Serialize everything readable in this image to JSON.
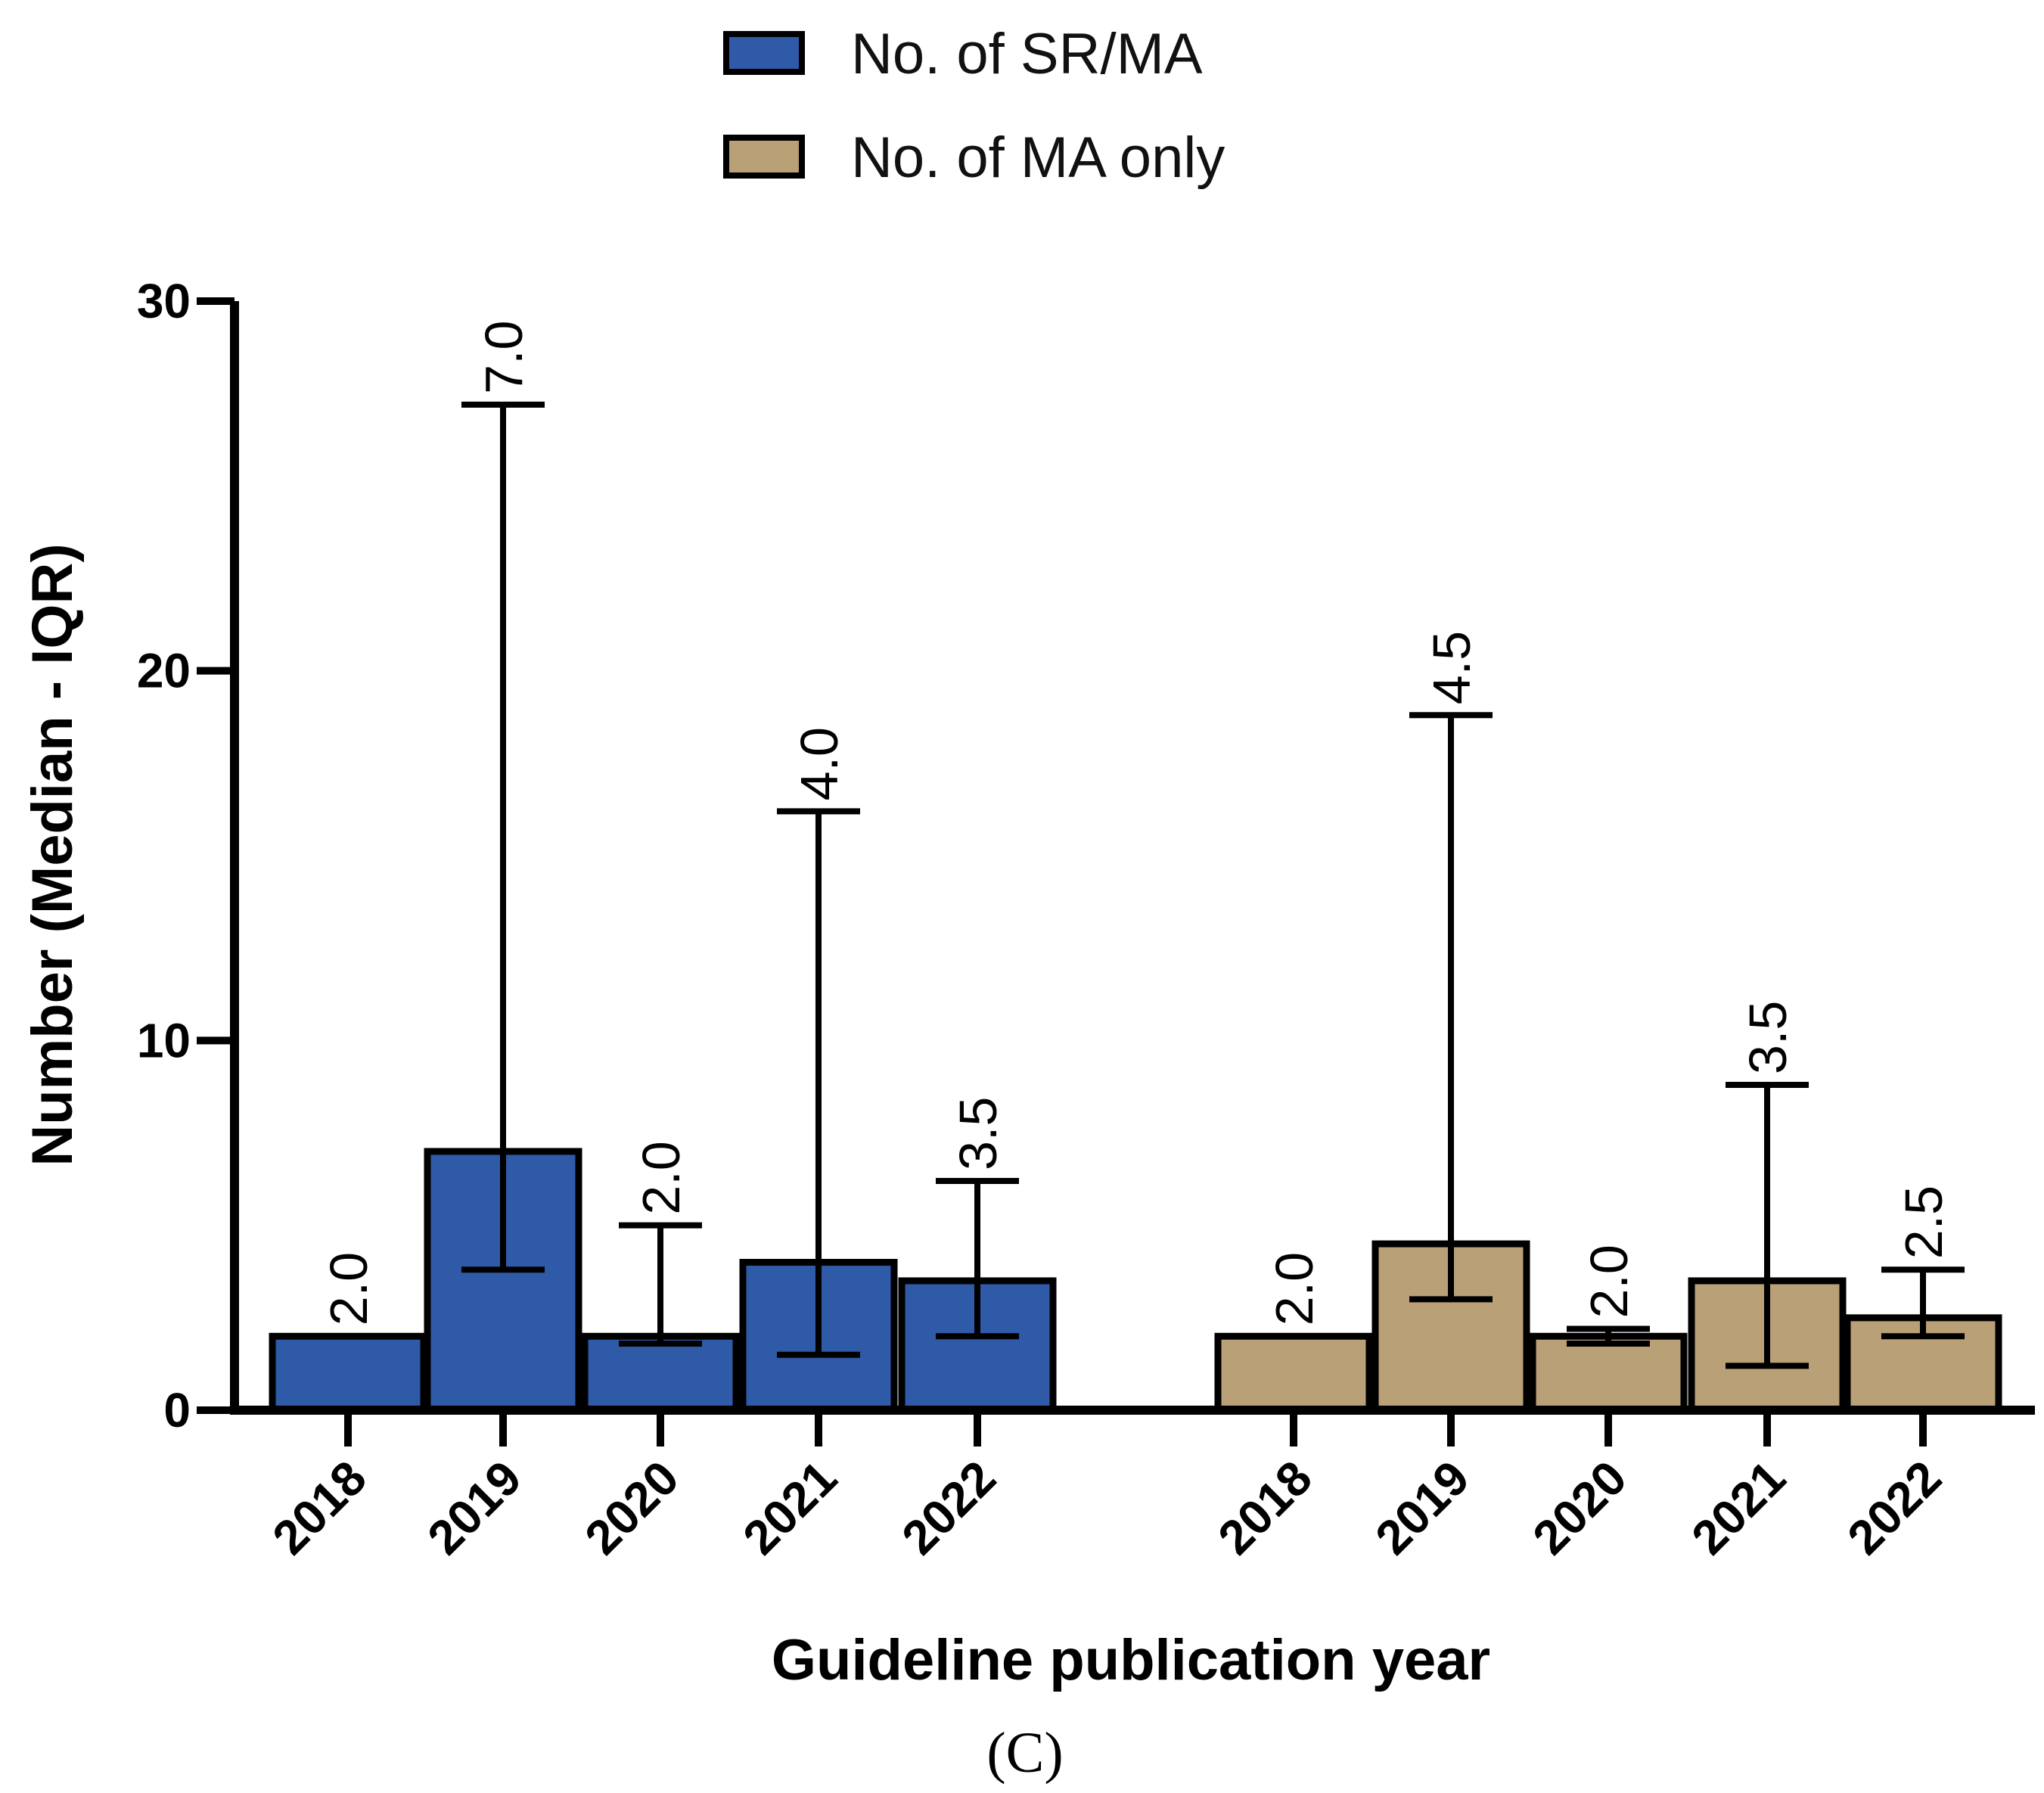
{
  "chart_data": {
    "type": "bar",
    "title": "",
    "xlabel": "Guideline publication year",
    "ylabel": "Number (Median - IQR)",
    "ylim": [
      0,
      30
    ],
    "yticks": [
      0,
      10,
      20,
      30
    ],
    "grid": false,
    "legend_position": "top-center",
    "panel_label": "(C)",
    "colors": {
      "sr_ma": "#2f5aa8",
      "ma_only": "#b9a077",
      "stroke": "#000000"
    },
    "series": [
      {
        "name": "No. of SR/MA",
        "color": "#2f5aa8",
        "categories": [
          "2018",
          "2019",
          "2020",
          "2021",
          "2022"
        ],
        "values": [
          2.0,
          7.0,
          2.0,
          4.0,
          3.5
        ],
        "labels": [
          "2.0",
          "7.0",
          "2.0",
          "4.0",
          "3.5"
        ],
        "iqr_low": [
          null,
          3.8,
          1.8,
          1.5,
          2.0
        ],
        "iqr_high": [
          null,
          27.2,
          5.0,
          16.2,
          6.2
        ]
      },
      {
        "name": "No. of MA only",
        "color": "#b9a077",
        "categories": [
          "2018",
          "2019",
          "2020",
          "2021",
          "2022"
        ],
        "values": [
          2.0,
          4.5,
          2.0,
          3.5,
          2.5
        ],
        "labels": [
          "2.0",
          "4.5",
          "2.0",
          "3.5",
          "2.5"
        ],
        "iqr_low": [
          null,
          3.0,
          1.8,
          1.2,
          2.0
        ],
        "iqr_high": [
          null,
          18.8,
          2.2,
          8.8,
          3.8
        ]
      }
    ]
  }
}
